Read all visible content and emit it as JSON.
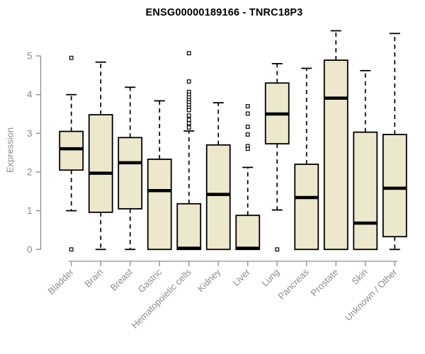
{
  "chart_data": {
    "type": "boxplot",
    "title": "ENSG00000189166 - TNRC18P3",
    "ylabel": "Expression",
    "xlabel": "",
    "ylim": [
      0,
      5.7
    ],
    "yticks": [
      0,
      1,
      2,
      3,
      4,
      5
    ],
    "grid": false,
    "legend": "none",
    "categories": [
      "Bladder",
      "Brain",
      "Breast",
      "Gastric",
      "Hematopoietic cells",
      "Kidney",
      "Liver",
      "Lung",
      "Pancreas",
      "Prostate",
      "Skin",
      "Unknown / Other"
    ],
    "boxes": [
      {
        "category": "Bladder",
        "whisker_low": 1.0,
        "q1": 2.05,
        "median": 2.6,
        "q3": 3.05,
        "whisker_high": 4.0,
        "outliers": [
          4.95,
          0.0
        ]
      },
      {
        "category": "Brain",
        "whisker_low": 0.0,
        "q1": 0.96,
        "median": 1.97,
        "q3": 3.48,
        "whisker_high": 4.84,
        "outliers": []
      },
      {
        "category": "Breast",
        "whisker_low": 0.0,
        "q1": 1.05,
        "median": 2.24,
        "q3": 2.89,
        "whisker_high": 4.19,
        "outliers": []
      },
      {
        "category": "Gastric",
        "whisker_low": 0.0,
        "q1": 0.0,
        "median": 1.52,
        "q3": 2.33,
        "whisker_high": 3.84,
        "outliers": []
      },
      {
        "category": "Hematopoietic cells",
        "whisker_low": 0.0,
        "q1": 0.0,
        "median": 0.03,
        "q3": 1.18,
        "whisker_high": 3.06,
        "outliers": [
          5.07,
          4.34,
          4.07,
          4.0,
          3.93,
          3.86,
          3.8,
          3.73,
          3.66,
          3.6,
          3.46,
          3.35,
          3.26,
          3.15
        ]
      },
      {
        "category": "Kidney",
        "whisker_low": 0.0,
        "q1": 0.0,
        "median": 1.42,
        "q3": 2.7,
        "whisker_high": 3.79,
        "outliers": []
      },
      {
        "category": "Liver",
        "whisker_low": 0.0,
        "q1": 0.0,
        "median": 0.03,
        "q3": 0.88,
        "whisker_high": 2.12,
        "outliers": [
          3.7,
          3.51,
          3.17,
          2.97,
          2.67,
          2.6
        ]
      },
      {
        "category": "Lung",
        "whisker_low": 1.02,
        "q1": 2.73,
        "median": 3.5,
        "q3": 4.3,
        "whisker_high": 4.8,
        "outliers": [
          0.0
        ]
      },
      {
        "category": "Pancreas",
        "whisker_low": 0.0,
        "q1": 0.0,
        "median": 1.34,
        "q3": 2.2,
        "whisker_high": 4.68,
        "outliers": []
      },
      {
        "category": "Prostate",
        "whisker_low": 0.0,
        "q1": 0.0,
        "median": 3.91,
        "q3": 4.89,
        "whisker_high": 5.65,
        "outliers": []
      },
      {
        "category": "Skin",
        "whisker_low": 0.0,
        "q1": 0.0,
        "median": 0.68,
        "q3": 3.03,
        "whisker_high": 4.62,
        "outliers": []
      },
      {
        "category": "Unknown / Other",
        "whisker_low": 0.0,
        "q1": 0.33,
        "median": 1.58,
        "q3": 2.97,
        "whisker_high": 5.58,
        "outliers": []
      }
    ],
    "colors": {
      "box_fill": "#EDE7CC",
      "box_border": "#000000",
      "median_line": "#000000",
      "whisker": "#000000",
      "outlier_stroke": "#000000",
      "outlier_fill": "#FFFFFF",
      "axis": "#8C8C8C",
      "tick_label": "#8C8C8C",
      "title": "#000000",
      "background": "#FFFFFF"
    }
  }
}
